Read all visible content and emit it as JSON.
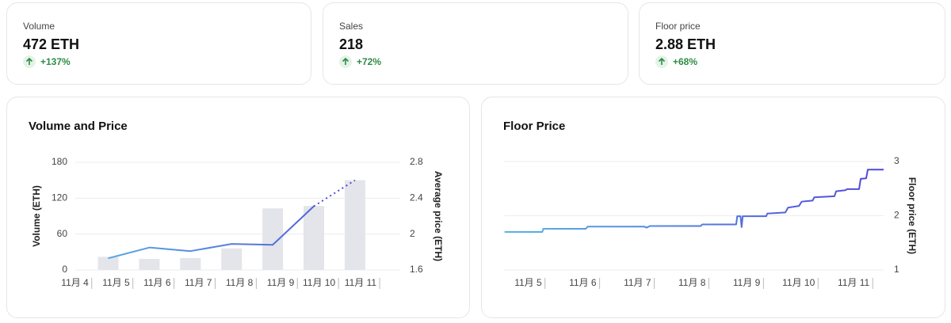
{
  "stats": [
    {
      "label": "Volume",
      "value": "472 ETH",
      "change": "+137%"
    },
    {
      "label": "Sales",
      "value": "218",
      "change": "+72%"
    },
    {
      "label": "Floor price",
      "value": "2.88 ETH",
      "change": "+68%"
    }
  ],
  "chart_data": [
    {
      "type": "combo",
      "title": "Volume and Price",
      "y_label": "Volume (ETH)",
      "y2_label": "Average price (ETH)",
      "xlim": [
        3.6,
        11.5
      ],
      "xticks": [
        {
          "value": 4,
          "label": "11月 4"
        },
        {
          "value": 5,
          "label": "11月 5"
        },
        {
          "value": 6,
          "label": "11月 6"
        },
        {
          "value": 7,
          "label": "11月 7"
        },
        {
          "value": 8,
          "label": "11月 8"
        },
        {
          "value": 9,
          "label": "11月 9"
        },
        {
          "value": 10,
          "label": "11月 10"
        },
        {
          "value": 11,
          "label": "11月 11"
        }
      ],
      "ylim": [
        0,
        180
      ],
      "yticks": [
        0,
        60,
        120,
        180
      ],
      "y2lim": [
        1.6,
        2.8
      ],
      "y2ticks": [
        1.6,
        2,
        2.4,
        2.8
      ],
      "grid": true,
      "x": [
        4.4,
        5.4,
        6.4,
        7.4,
        8.4,
        9.4,
        10.4
      ],
      "series": [
        {
          "type": "bar",
          "color": "#e4e5ea",
          "values": [
            22,
            18.5,
            20,
            36,
            103,
            107,
            150
          ]
        },
        {
          "type": "line",
          "axis": "y2",
          "color": [
            "#5ab4e5",
            "#5046d8"
          ],
          "values": [
            1.73,
            1.85,
            1.81,
            1.89,
            1.88,
            2.31,
            2.6
          ]
        }
      ]
    },
    {
      "type": "line",
      "title": "Floor Price",
      "y2_label": "Floor price (ETH)",
      "xlim": [
        4.25,
        11.2
      ],
      "xticks": [
        {
          "value": 5,
          "label": "11月 5"
        },
        {
          "value": 6,
          "label": "11月 6"
        },
        {
          "value": 7,
          "label": "11月 7"
        },
        {
          "value": 8,
          "label": "11月 8"
        },
        {
          "value": 9,
          "label": "11月 9"
        },
        {
          "value": 10,
          "label": "11月 10"
        },
        {
          "value": 11,
          "label": "11月 11"
        }
      ],
      "y2lim": [
        1,
        3
      ],
      "y2ticks": [
        1,
        2,
        3
      ],
      "grid": true,
      "x": [
        4.26,
        4.95,
        4.97,
        5.75,
        5.78,
        6.82,
        6.86,
        6.92,
        7.85,
        7.88,
        8.5,
        8.52,
        8.58,
        8.6,
        8.62,
        9.05,
        9.07,
        9.4,
        9.45,
        9.65,
        9.7,
        9.9,
        9.93,
        10.3,
        10.33,
        10.5,
        10.53,
        10.75,
        10.78,
        10.88,
        10.91,
        11.2
      ],
      "series": [
        {
          "type": "line",
          "axis": "y2",
          "color": [
            "#5ab4e5",
            "#5046d8"
          ],
          "values": [
            1.7,
            1.7,
            1.76,
            1.76,
            1.8,
            1.8,
            1.78,
            1.81,
            1.81,
            1.84,
            1.84,
            1.99,
            1.99,
            1.79,
            1.99,
            1.99,
            2.04,
            2.06,
            2.15,
            2.18,
            2.26,
            2.28,
            2.34,
            2.36,
            2.45,
            2.47,
            2.49,
            2.49,
            2.68,
            2.69,
            2.85,
            2.85
          ]
        }
      ]
    }
  ]
}
